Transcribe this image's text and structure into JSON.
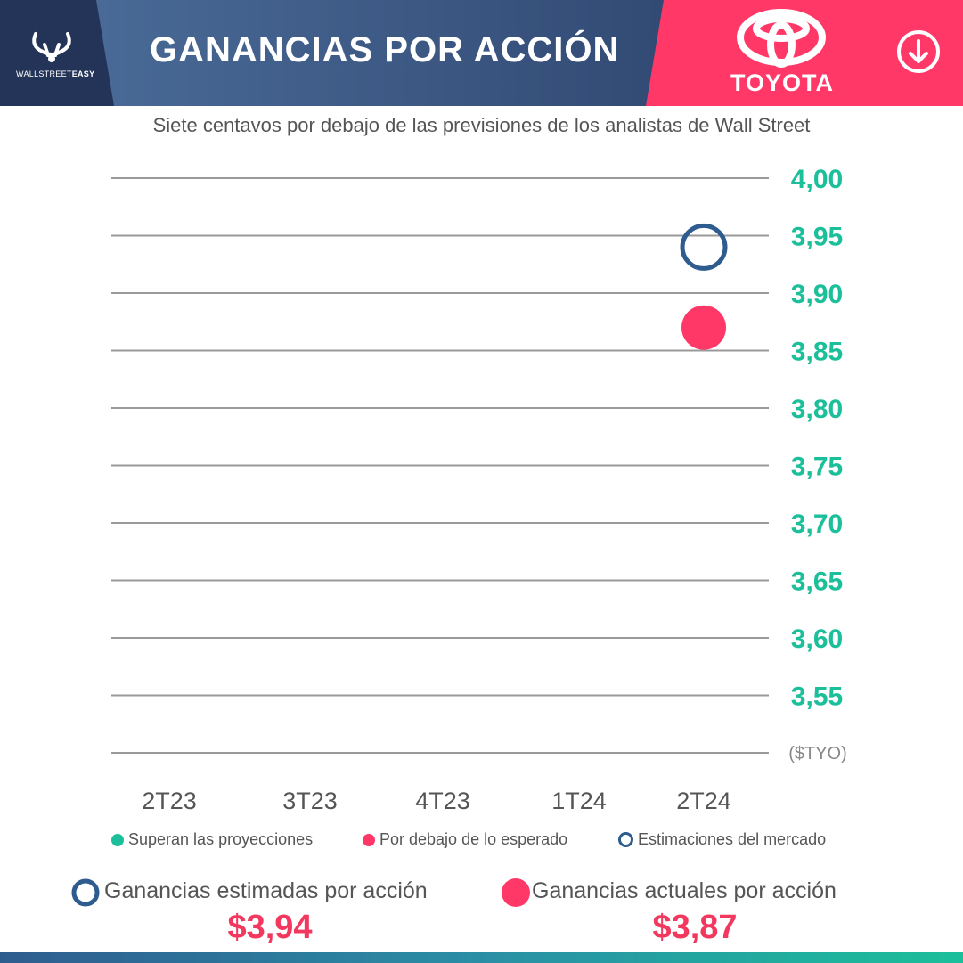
{
  "header": {
    "logo_text_light": "WALLSTREET",
    "logo_text_bold": "EASY",
    "title": "GANANCIAS POR ACCIÓN",
    "brand": "TOYOTA",
    "download_icon": "download-arrow-icon",
    "colors": {
      "navy": "#243458",
      "blue": "#3a5f8f",
      "pink": "#ff3868"
    }
  },
  "subtitle": "Siete centavos por debajo de las previsiones de los analistas de Wall Street",
  "chart_data": {
    "type": "scatter",
    "categories": [
      "2T23",
      "3T23",
      "4T23",
      "1T24",
      "2T24"
    ],
    "y_ticks": [
      "4,00",
      "3,95",
      "3,90",
      "3,85",
      "3,80",
      "3,75",
      "3,70",
      "3,65",
      "3,60",
      "3,55"
    ],
    "ylim": [
      3.5,
      4.0
    ],
    "unit_label": "($TYO)",
    "grid": true,
    "series": [
      {
        "name": "Estimaciones del mercado",
        "style": "ring",
        "color": "#2e5c8f",
        "values": [
          null,
          null,
          null,
          null,
          3.94
        ]
      },
      {
        "name": "Por debajo de lo esperado",
        "style": "dot",
        "color": "#ff3868",
        "values": [
          null,
          null,
          null,
          null,
          3.87
        ]
      }
    ],
    "legend": [
      {
        "label": "Superan las proyecciones",
        "style": "dot",
        "color": "#1bbf9a"
      },
      {
        "label": "Por debajo de lo esperado",
        "style": "dot",
        "color": "#ff3868"
      },
      {
        "label": "Estimaciones del mercado",
        "style": "ring",
        "color": "#2e5c8f"
      }
    ],
    "colors": {
      "tick": "#1bbf9a",
      "grid": "#9a9a9a",
      "category": "#555555"
    }
  },
  "summary": {
    "estimated_label": "Ganancias estimadas por acción",
    "estimated_value": "$3,94",
    "actual_label": "Ganancias actuales por acción",
    "actual_value": "$3,87"
  }
}
